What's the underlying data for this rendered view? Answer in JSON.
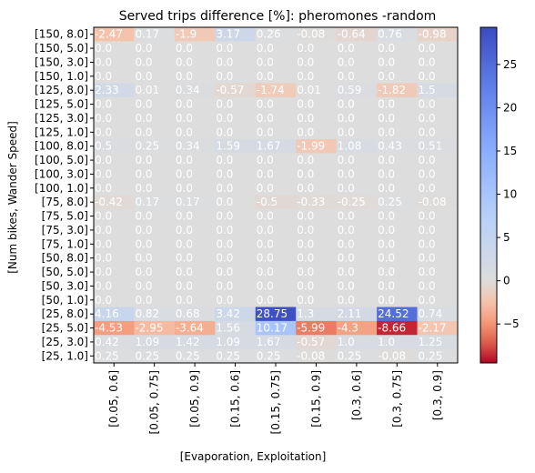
{
  "chart_data": {
    "type": "heatmap",
    "title": "Served trips difference [%]: pheromones -random",
    "xlabel": "[Evaporation, Exploitation]",
    "ylabel": "[Num bikes, Wander Speed]",
    "x_categories": [
      "[0.05, 0.6]",
      "[0.05, 0.75]",
      "[0.05, 0.9]",
      "[0.15, 0.6]",
      "[0.15, 0.75]",
      "[0.15, 0.9]",
      "[0.3, 0.6]",
      "[0.3, 0.75]",
      "[0.3, 0.9]"
    ],
    "y_categories": [
      "[150, 8.0]",
      "[150, 5.0]",
      "[150, 3.0]",
      "[150, 1.0]",
      "[125, 8.0]",
      "[125, 5.0]",
      "[125, 3.0]",
      "[125, 1.0]",
      "[100, 8.0]",
      "[100, 5.0]",
      "[100, 3.0]",
      "[100, 1.0]",
      "[75, 8.0]",
      "[75, 5.0]",
      "[75, 3.0]",
      "[75, 1.0]",
      "[50, 8.0]",
      "[50, 5.0]",
      "[50, 3.0]",
      "[50, 1.0]",
      "[25, 8.0]",
      "[25, 5.0]",
      "[25, 3.0]",
      "[25, 1.0]"
    ],
    "values": [
      [
        -2.47,
        0.17,
        -1.9,
        3.17,
        0.26,
        -0.08,
        -0.64,
        0.76,
        -0.98
      ],
      [
        0.0,
        0.0,
        0.0,
        0.0,
        0.0,
        0.0,
        0.0,
        0.0,
        0.0
      ],
      [
        0.0,
        0.0,
        0.0,
        0.0,
        0.0,
        0.0,
        0.0,
        0.0,
        0.0
      ],
      [
        0.0,
        0.0,
        0.0,
        0.0,
        0.0,
        0.0,
        0.0,
        0.0,
        0.0
      ],
      [
        2.33,
        0.01,
        0.34,
        -0.57,
        -1.74,
        0.01,
        0.59,
        -1.82,
        1.5
      ],
      [
        0.0,
        0.0,
        0.0,
        0.0,
        0.0,
        0.0,
        0.0,
        0.0,
        0.0
      ],
      [
        0.0,
        0.0,
        0.0,
        0.0,
        0.0,
        0.0,
        0.0,
        0.0,
        0.0
      ],
      [
        0.0,
        0.0,
        0.0,
        0.0,
        0.0,
        0.0,
        0.0,
        0.0,
        0.0
      ],
      [
        0.5,
        0.25,
        0.34,
        1.59,
        1.67,
        -1.99,
        1.08,
        0.43,
        0.51
      ],
      [
        0.0,
        0.0,
        0.0,
        0.0,
        0.0,
        0.0,
        0.0,
        0.0,
        0.0
      ],
      [
        0.0,
        0.0,
        0.0,
        0.0,
        0.0,
        0.0,
        0.0,
        0.0,
        0.0
      ],
      [
        0.0,
        0.0,
        0.0,
        0.0,
        0.0,
        0.0,
        0.0,
        0.0,
        0.0
      ],
      [
        -0.42,
        0.17,
        0.17,
        0.0,
        -0.5,
        -0.33,
        -0.25,
        0.25,
        -0.08
      ],
      [
        0.0,
        0.0,
        0.0,
        0.0,
        0.0,
        0.0,
        0.0,
        0.0,
        0.0
      ],
      [
        0.0,
        0.0,
        0.0,
        0.0,
        0.0,
        0.0,
        0.0,
        0.0,
        0.0
      ],
      [
        0.0,
        0.0,
        0.0,
        0.0,
        0.0,
        0.0,
        0.0,
        0.0,
        0.0
      ],
      [
        0.0,
        0.0,
        0.0,
        0.0,
        0.0,
        0.0,
        0.0,
        0.0,
        0.0
      ],
      [
        0.0,
        0.0,
        0.0,
        0.0,
        0.0,
        0.0,
        0.0,
        0.0,
        0.0
      ],
      [
        0.0,
        0.0,
        0.0,
        0.0,
        0.0,
        0.0,
        0.0,
        0.0,
        0.0
      ],
      [
        0.0,
        0.0,
        0.0,
        0.0,
        0.0,
        0.0,
        0.0,
        0.0,
        0.0
      ],
      [
        4.16,
        0.82,
        0.68,
        3.42,
        28.75,
        1.3,
        2.11,
        24.52,
        0.74
      ],
      [
        -4.53,
        -2.95,
        -3.64,
        1.56,
        10.17,
        -5.99,
        -4.3,
        -8.66,
        -2.17
      ],
      [
        0.42,
        1.09,
        1.42,
        1.09,
        1.67,
        -0.57,
        1.0,
        1.0,
        1.25
      ],
      [
        0.25,
        0.25,
        0.25,
        0.25,
        0.25,
        -0.08,
        0.25,
        -0.08,
        0.25
      ]
    ],
    "colormap": "coolwarm",
    "color_range": [
      -9.5,
      29.3
    ],
    "colorbar_ticks": [
      -5,
      0,
      5,
      10,
      15,
      20,
      25
    ],
    "grid": false
  }
}
